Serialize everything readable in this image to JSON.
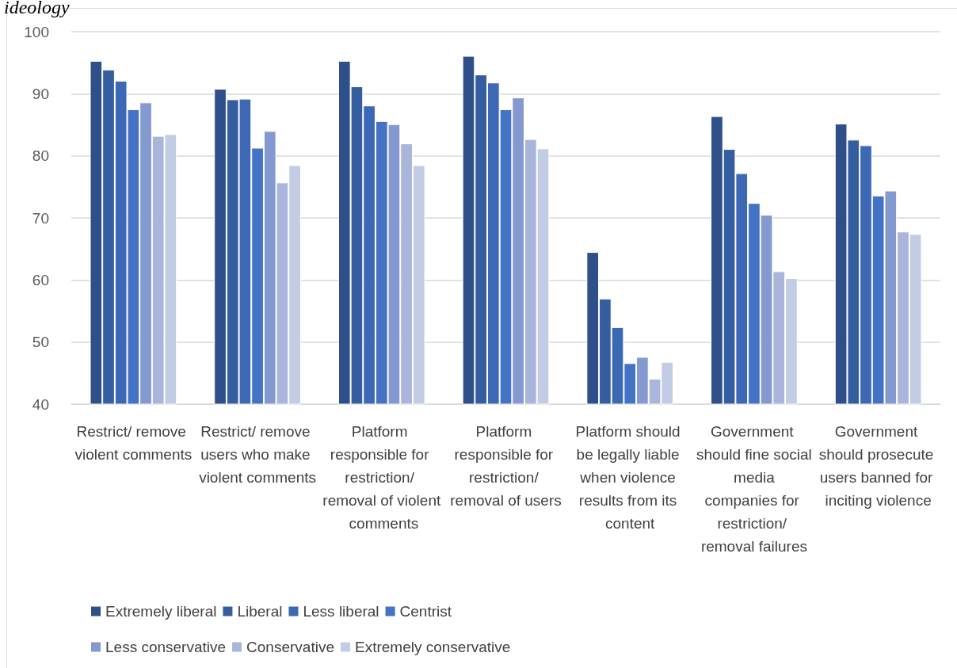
{
  "chart_data": {
    "type": "bar",
    "title": "ideology",
    "categories": [
      "Restrict/ remove violent comments",
      "Restrict/ remove users who make violent comments",
      "Platform responsible for restriction/ removal of violent comments",
      "Platform responsible for restriction/ removal of users",
      "Platform should be legally liable when violence results from its content",
      "Government should fine social media companies for restriction/ removal failures",
      "Government should prosecute users banned for inciting violence"
    ],
    "series": [
      {
        "name": "Extremely liberal",
        "color": "#2f4f8b",
        "values": [
          95.3,
          90.8,
          95.3,
          96.1,
          64.5,
          86.4,
          85.2
        ]
      },
      {
        "name": "Liberal",
        "color": "#355ea1",
        "values": [
          93.9,
          89.1,
          91.2,
          93.1,
          57.0,
          81.1,
          82.6
        ]
      },
      {
        "name": "Less liberal",
        "color": "#3d68b5",
        "values": [
          92.1,
          89.2,
          88.1,
          91.8,
          52.4,
          77.2,
          81.7
        ]
      },
      {
        "name": "Centrist",
        "color": "#4472c4",
        "values": [
          87.5,
          81.3,
          85.6,
          87.5,
          46.6,
          72.4,
          73.6
        ]
      },
      {
        "name": "Less conservative",
        "color": "#8499d0",
        "values": [
          88.6,
          84.0,
          85.1,
          89.4,
          47.6,
          70.5,
          74.4
        ]
      },
      {
        "name": "Conservative",
        "color": "#a9b5da",
        "values": [
          83.2,
          75.7,
          82.0,
          82.7,
          44.1,
          61.4,
          67.8
        ]
      },
      {
        "name": "Extremely conservative",
        "color": "#c3cce5",
        "values": [
          83.5,
          78.5,
          78.5,
          81.2,
          46.8,
          60.3,
          67.4
        ]
      }
    ],
    "ylim": [
      40,
      100
    ],
    "yticks": [
      40,
      50,
      60,
      70,
      80,
      90,
      100
    ],
    "grid": "y",
    "legend": "bottom"
  }
}
